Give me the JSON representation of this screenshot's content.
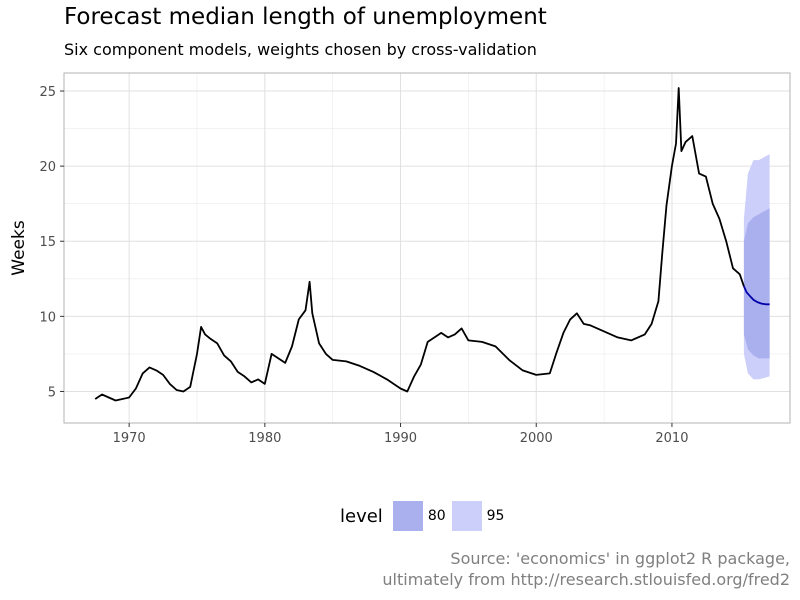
{
  "title": "Forecast median length of unemployment",
  "subtitle": "Six component models, weights chosen by cross-validation",
  "caption_line1": "Source: 'economics' in ggplot2 R package,",
  "caption_line2": "ultimately from http://research.stlouisfed.org/fred2",
  "legend": {
    "title": "level",
    "items": [
      {
        "label": "80",
        "color": "#aab0ee"
      },
      {
        "label": "95",
        "color": "#cccffa"
      }
    ]
  },
  "colors": {
    "history": "#000000",
    "forecast": "#0000aa",
    "band80": "#aab0ee",
    "band95": "#cccffa",
    "grid": "#ebebeb",
    "panel_border": "#b3b3b3"
  },
  "chart_data": {
    "type": "line",
    "title": "Forecast median length of unemployment",
    "ylabel": "Weeks",
    "xlabel": "",
    "xlim": [
      1965.2,
      2018.7
    ],
    "ylim": [
      2.9,
      26.2
    ],
    "x_ticks": [
      1970,
      1980,
      1990,
      2000,
      2010
    ],
    "y_ticks": [
      5,
      10,
      15,
      20,
      25
    ],
    "grid": true,
    "legend_position": "bottom",
    "series": [
      {
        "role": "history",
        "x": [
          1967.5,
          1968.0,
          1968.5,
          1969.0,
          1969.5,
          1970.0,
          1970.5,
          1971.0,
          1971.5,
          1972.0,
          1972.5,
          1973.0,
          1973.5,
          1974.0,
          1974.5,
          1975.0,
          1975.3,
          1975.6,
          1976.0,
          1976.5,
          1977.0,
          1977.5,
          1978.0,
          1978.5,
          1979.0,
          1979.5,
          1980.0,
          1980.5,
          1981.0,
          1981.5,
          1982.0,
          1982.5,
          1983.0,
          1983.3,
          1983.5,
          1984.0,
          1984.5,
          1985.0,
          1986.0,
          1987.0,
          1988.0,
          1989.0,
          1990.0,
          1990.5,
          1991.0,
          1991.5,
          1992.0,
          1992.5,
          1993.0,
          1993.5,
          1994.0,
          1994.5,
          1995.0,
          1996.0,
          1997.0,
          1998.0,
          1999.0,
          2000.0,
          2001.0,
          2001.5,
          2002.0,
          2002.5,
          2003.0,
          2003.5,
          2004.0,
          2005.0,
          2006.0,
          2007.0,
          2008.0,
          2008.5,
          2009.0,
          2009.3,
          2009.6,
          2010.0,
          2010.3,
          2010.5,
          2010.7,
          2011.0,
          2011.5,
          2012.0,
          2012.5,
          2013.0,
          2013.5,
          2014.0,
          2014.5,
          2015.0,
          2015.3
        ],
        "y": [
          4.5,
          4.8,
          4.6,
          4.4,
          4.5,
          4.6,
          5.2,
          6.2,
          6.6,
          6.4,
          6.1,
          5.5,
          5.1,
          5.0,
          5.3,
          7.5,
          9.3,
          8.8,
          8.5,
          8.2,
          7.4,
          7.0,
          6.3,
          6.0,
          5.6,
          5.8,
          5.5,
          7.5,
          7.2,
          6.9,
          8.0,
          9.8,
          10.4,
          12.3,
          10.2,
          8.2,
          7.5,
          7.1,
          7.0,
          6.7,
          6.3,
          5.8,
          5.2,
          5.0,
          6.0,
          6.8,
          8.3,
          8.6,
          8.9,
          8.6,
          8.8,
          9.2,
          8.4,
          8.3,
          8.0,
          7.1,
          6.4,
          6.1,
          6.2,
          7.6,
          8.9,
          9.8,
          10.2,
          9.5,
          9.4,
          9.0,
          8.6,
          8.4,
          8.8,
          9.5,
          11.0,
          14.3,
          17.4,
          20.0,
          21.5,
          25.2,
          21.0,
          21.6,
          22.0,
          19.5,
          19.3,
          17.5,
          16.5,
          15.0,
          13.2,
          12.8,
          12.0
        ]
      },
      {
        "role": "forecast",
        "x": [
          2015.3,
          2015.5,
          2015.8,
          2016.0,
          2016.3,
          2016.6,
          2016.9,
          2017.2
        ],
        "y": [
          12.0,
          11.6,
          11.3,
          11.1,
          10.95,
          10.85,
          10.8,
          10.8
        ]
      }
    ],
    "intervals": [
      {
        "level": "95",
        "x": [
          2015.3,
          2015.6,
          2016.0,
          2016.4,
          2016.8,
          2017.2
        ],
        "lower": [
          7.5,
          6.2,
          5.8,
          5.8,
          5.9,
          6.0
        ],
        "upper": [
          16.5,
          19.5,
          20.4,
          20.4,
          20.6,
          20.8
        ]
      },
      {
        "level": "80",
        "x": [
          2015.3,
          2015.6,
          2016.0,
          2016.4,
          2016.8,
          2017.2
        ],
        "lower": [
          8.8,
          7.8,
          7.4,
          7.2,
          7.2,
          7.2
        ],
        "upper": [
          15.0,
          16.2,
          16.6,
          16.8,
          17.0,
          17.2
        ]
      }
    ]
  }
}
